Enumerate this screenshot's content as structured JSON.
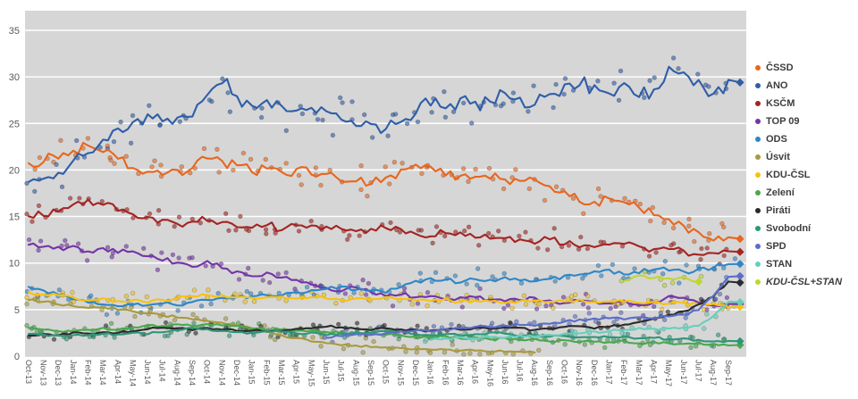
{
  "chart_data": {
    "type": "scatter",
    "title": "",
    "xlabel": "",
    "ylabel": "",
    "ylim": [
      0,
      36.5
    ],
    "yticks": [
      0,
      5,
      10,
      15,
      20,
      25,
      30,
      35
    ],
    "grid": "horizontal-major",
    "legend_position": "right",
    "plot_bg_color": "#d6d6d6",
    "grid_color": "#ffffff",
    "axis_text_color": "#595959",
    "x_label_rotation_deg": 90,
    "x_labels": [
      "Oct-13",
      "Nov-13",
      "Dec-13",
      "Jan-14",
      "Feb-14",
      "Mar-14",
      "Apr-14",
      "May-14",
      "Jun-14",
      "Jul-14",
      "Aug-14",
      "Sep-14",
      "Oct-14",
      "Nov-14",
      "Dec-14",
      "Jan-15",
      "Feb-15",
      "Mar-15",
      "Apr-15",
      "May-15",
      "Jun-15",
      "Jul-15",
      "Aug-15",
      "Sep-15",
      "Oct-15",
      "Nov-15",
      "Dec-15",
      "Jan-16",
      "Feb-16",
      "Mar-16",
      "Apr-16",
      "May-16",
      "Jun-16",
      "Jul-16",
      "Aug-16",
      "Sep-16",
      "Oct-16",
      "Nov-16",
      "Dec-16",
      "Jan-17",
      "Feb-17",
      "Mar-17",
      "Apr-17",
      "May-17",
      "Jun-17",
      "Jul-17",
      "Aug-17",
      "Sep-17"
    ],
    "series": [
      {
        "name": "ČSSD",
        "slug": "cssd",
        "color": "#e8661d",
        "start": 0,
        "end_marker": true,
        "scatter_spread": 1.7,
        "major": true,
        "values": [
          20.5,
          21.0,
          21.5,
          22.2,
          22.5,
          21.9,
          21.3,
          20.4,
          19.9,
          19.5,
          19.8,
          20.1,
          21.2,
          20.9,
          20.4,
          19.9,
          20.1,
          19.7,
          19.9,
          19.6,
          19.3,
          19.0,
          18.8,
          18.7,
          19.1,
          19.9,
          20.4,
          20.1,
          19.7,
          19.4,
          19.1,
          19.3,
          19.0,
          18.8,
          18.9,
          18.4,
          17.6,
          16.8,
          16.5,
          16.9,
          16.6,
          16.0,
          15.2,
          14.5,
          13.8,
          13.2,
          12.5,
          12.6
        ]
      },
      {
        "name": "ANO",
        "slug": "ano",
        "color": "#2f5ea8",
        "start": 0,
        "end_marker": true,
        "scatter_spread": 2.3,
        "major": true,
        "values": [
          18.6,
          19.0,
          19.6,
          21.0,
          21.6,
          23.0,
          24.3,
          25.0,
          25.6,
          25.1,
          25.5,
          26.0,
          28.2,
          29.6,
          28.0,
          26.6,
          27.1,
          26.6,
          26.1,
          26.5,
          26.0,
          25.4,
          25.0,
          24.9,
          24.4,
          25.4,
          26.4,
          27.3,
          26.9,
          27.4,
          27.0,
          27.5,
          28.0,
          27.6,
          27.1,
          27.9,
          28.8,
          29.4,
          28.9,
          28.5,
          29.0,
          28.2,
          28.6,
          31.0,
          30.1,
          29.4,
          28.2,
          29.4
        ]
      },
      {
        "name": "KSČM",
        "slug": "kscm",
        "color": "#a42422",
        "start": 0,
        "end_marker": true,
        "scatter_spread": 1.2,
        "major": true,
        "values": [
          15.0,
          15.3,
          15.6,
          16.2,
          16.6,
          16.4,
          15.8,
          15.4,
          14.9,
          14.5,
          14.2,
          14.4,
          14.7,
          14.3,
          14.0,
          13.8,
          14.1,
          13.7,
          13.9,
          14.2,
          13.8,
          13.5,
          13.3,
          13.5,
          13.8,
          13.6,
          13.2,
          13.0,
          13.3,
          13.4,
          12.9,
          12.6,
          12.8,
          12.4,
          12.2,
          12.6,
          12.1,
          11.8,
          11.6,
          11.9,
          12.1,
          11.7,
          11.4,
          11.6,
          11.2,
          10.8,
          11.0,
          11.2
        ]
      },
      {
        "name": "TOP 09",
        "slug": "top09",
        "color": "#7434a8",
        "start": 0,
        "end_marker": true,
        "scatter_spread": 1.1,
        "major": true,
        "values": [
          12.0,
          11.8,
          11.6,
          11.7,
          11.4,
          11.6,
          11.1,
          11.2,
          10.8,
          10.4,
          10.1,
          9.7,
          10.1,
          9.5,
          9.0,
          8.7,
          8.9,
          8.5,
          8.1,
          7.7,
          7.3,
          7.0,
          7.4,
          6.9,
          6.5,
          6.7,
          6.3,
          6.5,
          6.1,
          6.3,
          6.4,
          6.0,
          5.9,
          6.1,
          6.2,
          5.9,
          5.7,
          6.0,
          5.8,
          5.7,
          5.9,
          5.5,
          5.7,
          6.4,
          6.2,
          5.7,
          5.4,
          5.6
        ]
      },
      {
        "name": "ODS",
        "slug": "ods",
        "color": "#2e86c8",
        "start": 0,
        "end_marker": true,
        "scatter_spread": 1.0,
        "major": true,
        "values": [
          7.5,
          7.0,
          6.6,
          6.2,
          5.8,
          5.5,
          5.3,
          5.6,
          5.4,
          5.7,
          5.5,
          5.8,
          6.0,
          6.2,
          6.3,
          6.4,
          6.6,
          6.5,
          6.8,
          7.0,
          7.2,
          7.4,
          7.2,
          7.0,
          6.9,
          7.4,
          8.0,
          8.4,
          8.2,
          8.0,
          8.3,
          8.1,
          8.4,
          8.2,
          8.0,
          8.3,
          8.6,
          8.8,
          9.0,
          9.2,
          8.8,
          9.0,
          9.4,
          9.2,
          9.0,
          9.3,
          9.6,
          9.9
        ]
      },
      {
        "name": "Úsvit",
        "slug": "usvit",
        "color": "#a89b3c",
        "start": 0,
        "end_marker": false,
        "scatter_spread": 0.8,
        "major": true,
        "values": [
          6.1,
          5.9,
          5.6,
          5.4,
          5.2,
          5.3,
          5.0,
          4.8,
          4.6,
          4.4,
          4.2,
          4.0,
          3.8,
          3.6,
          3.3,
          3.0,
          2.6,
          2.2,
          1.9,
          1.6,
          1.4,
          1.2,
          1.1,
          1.0,
          0.9,
          0.8,
          0.8,
          0.7,
          0.7,
          0.6,
          0.6,
          0.5,
          0.5,
          0.5,
          0.4
        ]
      },
      {
        "name": "KDU-ČSL",
        "slug": "kdu-csl",
        "color": "#f5c211",
        "start": 0,
        "end_marker": true,
        "scatter_spread": 0.75,
        "major": true,
        "values": [
          6.8,
          6.6,
          6.5,
          6.3,
          6.0,
          6.2,
          5.9,
          6.1,
          5.8,
          6.0,
          6.2,
          6.4,
          6.6,
          6.5,
          6.4,
          6.2,
          6.4,
          6.3,
          6.1,
          6.3,
          6.2,
          6.0,
          6.2,
          6.1,
          6.3,
          6.2,
          6.0,
          5.9,
          6.1,
          5.8,
          6.0,
          5.9,
          5.7,
          5.9,
          6.0,
          5.8,
          5.9,
          6.1,
          5.9,
          5.8,
          5.9,
          5.7,
          5.8,
          5.6,
          5.7,
          5.5,
          5.6,
          5.3
        ]
      },
      {
        "name": "Zelení",
        "slug": "zeleni",
        "color": "#4aa84e",
        "start": 0,
        "end_marker": true,
        "scatter_spread": 0.6,
        "major": false,
        "values": [
          3.0,
          2.8,
          2.7,
          2.6,
          2.8,
          3.0,
          2.9,
          3.1,
          3.3,
          3.2,
          3.4,
          3.3,
          3.5,
          3.3,
          3.2,
          3.0,
          2.8,
          2.9,
          2.7,
          2.8,
          2.6,
          2.5,
          2.4,
          2.5,
          2.3,
          2.2,
          2.1,
          2.0,
          2.1,
          1.9,
          2.0,
          1.8,
          1.9,
          1.7,
          1.8,
          1.6,
          1.7,
          1.5,
          1.6,
          1.5,
          1.6,
          1.4,
          1.5,
          1.4,
          1.3,
          1.4,
          1.3,
          1.2
        ]
      },
      {
        "name": "Piráti",
        "slug": "pirati",
        "color": "#2b2b2b",
        "start": 0,
        "end_marker": true,
        "scatter_spread": 0.7,
        "major": false,
        "values": [
          2.2,
          2.4,
          2.3,
          2.5,
          2.4,
          2.6,
          2.5,
          2.7,
          2.9,
          3.1,
          3.0,
          2.8,
          3.0,
          2.9,
          2.7,
          2.8,
          2.6,
          2.7,
          2.9,
          3.0,
          3.2,
          3.1,
          2.9,
          2.8,
          3.0,
          2.9,
          2.8,
          2.7,
          2.9,
          2.8,
          3.0,
          2.9,
          3.1,
          3.0,
          2.8,
          2.9,
          3.1,
          3.2,
          3.0,
          3.2,
          3.4,
          3.6,
          4.0,
          4.4,
          4.8,
          5.5,
          6.5,
          7.9
        ]
      },
      {
        "name": "Svobodní",
        "slug": "svobodni",
        "color": "#2e9678",
        "start": 0,
        "end_marker": true,
        "scatter_spread": 0.6,
        "major": false,
        "values": [
          2.4,
          2.3,
          2.2,
          2.3,
          2.2,
          2.4,
          2.3,
          2.5,
          2.4,
          2.6,
          2.8,
          3.0,
          2.9,
          2.7,
          2.6,
          2.5,
          2.7,
          2.6,
          2.4,
          2.5,
          2.3,
          2.4,
          2.6,
          2.5,
          2.7,
          2.6,
          2.4,
          2.3,
          2.4,
          2.2,
          2.3,
          2.5,
          2.4,
          2.2,
          2.3,
          2.1,
          2.2,
          2.0,
          2.1,
          2.0,
          2.1,
          1.9,
          2.0,
          1.8,
          1.9,
          1.7,
          1.6,
          1.6
        ]
      },
      {
        "name": "SPD",
        "slug": "spd",
        "color": "#5b6dc9",
        "start": 20,
        "end_marker": true,
        "scatter_spread": 0.8,
        "major": false,
        "values": [
          2.0,
          2.2,
          2.4,
          2.3,
          2.5,
          2.6,
          2.8,
          2.7,
          2.9,
          3.0,
          3.2,
          3.1,
          3.3,
          3.4,
          3.3,
          3.5,
          3.7,
          3.9,
          4.0,
          4.1,
          4.0,
          4.2,
          4.1,
          4.3,
          4.5,
          5.0,
          6.5,
          8.6
        ]
      },
      {
        "name": "STAN",
        "slug": "stan",
        "color": "#66cfbc",
        "start": 27,
        "end_marker": true,
        "scatter_spread": 0.6,
        "major": false,
        "values": [
          1.8,
          1.9,
          2.0,
          1.9,
          2.1,
          2.0,
          2.2,
          2.1,
          2.3,
          2.4,
          2.5,
          2.6,
          2.7,
          2.8,
          3.0,
          2.9,
          3.0,
          3.1,
          3.2,
          4.3,
          5.8
        ]
      },
      {
        "name": "KDU-ČSL+STAN",
        "slug": "kdu-csl-stan",
        "color": "#bfd72e",
        "start": 40,
        "end_marker": true,
        "italic": true,
        "scatter_spread": 0.8,
        "major": false,
        "values": [
          8.2,
          8.6,
          8.4,
          8.3,
          8.5,
          8.0
        ]
      }
    ]
  }
}
